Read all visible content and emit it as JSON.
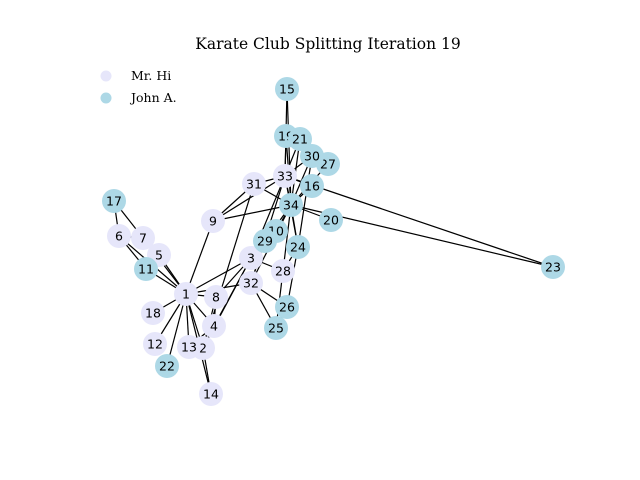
{
  "title": "Karate Club Splitting Iteration 19",
  "legend": [
    {
      "label": "Mr. Hi",
      "color": "#e6e6fa"
    },
    {
      "label": "John A.",
      "color": "#add8e6"
    }
  ],
  "colors": {
    "mr_hi": "#e6e6fa",
    "john_a": "#add8e6"
  },
  "nodes": [
    {
      "id": "1",
      "group": "mr_hi"
    },
    {
      "id": "2",
      "group": "mr_hi"
    },
    {
      "id": "3",
      "group": "mr_hi"
    },
    {
      "id": "4",
      "group": "mr_hi"
    },
    {
      "id": "5",
      "group": "mr_hi"
    },
    {
      "id": "6",
      "group": "mr_hi"
    },
    {
      "id": "7",
      "group": "mr_hi"
    },
    {
      "id": "8",
      "group": "mr_hi"
    },
    {
      "id": "9",
      "group": "mr_hi"
    },
    {
      "id": "10",
      "group": "john_a"
    },
    {
      "id": "11",
      "group": "john_a"
    },
    {
      "id": "12",
      "group": "mr_hi"
    },
    {
      "id": "13",
      "group": "mr_hi"
    },
    {
      "id": "14",
      "group": "mr_hi"
    },
    {
      "id": "15",
      "group": "john_a"
    },
    {
      "id": "16",
      "group": "john_a"
    },
    {
      "id": "17",
      "group": "john_a"
    },
    {
      "id": "18",
      "group": "mr_hi"
    },
    {
      "id": "19",
      "group": "john_a"
    },
    {
      "id": "20",
      "group": "john_a"
    },
    {
      "id": "21",
      "group": "john_a"
    },
    {
      "id": "22",
      "group": "john_a"
    },
    {
      "id": "23",
      "group": "john_a"
    },
    {
      "id": "24",
      "group": "john_a"
    },
    {
      "id": "25",
      "group": "john_a"
    },
    {
      "id": "26",
      "group": "john_a"
    },
    {
      "id": "27",
      "group": "john_a"
    },
    {
      "id": "28",
      "group": "mr_hi"
    },
    {
      "id": "29",
      "group": "john_a"
    },
    {
      "id": "30",
      "group": "john_a"
    },
    {
      "id": "31",
      "group": "mr_hi"
    },
    {
      "id": "32",
      "group": "mr_hi"
    },
    {
      "id": "33",
      "group": "mr_hi"
    },
    {
      "id": "34",
      "group": "john_a"
    }
  ],
  "edges": [
    [
      "1",
      "2"
    ],
    [
      "1",
      "3"
    ],
    [
      "1",
      "4"
    ],
    [
      "1",
      "5"
    ],
    [
      "1",
      "6"
    ],
    [
      "1",
      "7"
    ],
    [
      "1",
      "8"
    ],
    [
      "1",
      "9"
    ],
    [
      "1",
      "11"
    ],
    [
      "1",
      "12"
    ],
    [
      "1",
      "13"
    ],
    [
      "1",
      "14"
    ],
    [
      "1",
      "18"
    ],
    [
      "1",
      "22"
    ],
    [
      "1",
      "32"
    ],
    [
      "2",
      "3"
    ],
    [
      "2",
      "4"
    ],
    [
      "2",
      "8"
    ],
    [
      "2",
      "14"
    ],
    [
      "2",
      "31"
    ],
    [
      "3",
      "4"
    ],
    [
      "3",
      "8"
    ],
    [
      "3",
      "10"
    ],
    [
      "3",
      "28"
    ],
    [
      "3",
      "29"
    ],
    [
      "3",
      "33"
    ],
    [
      "4",
      "8"
    ],
    [
      "4",
      "13"
    ],
    [
      "5",
      "7"
    ],
    [
      "5",
      "11"
    ],
    [
      "6",
      "7"
    ],
    [
      "6",
      "11"
    ],
    [
      "6",
      "17"
    ],
    [
      "7",
      "17"
    ],
    [
      "9",
      "31"
    ],
    [
      "9",
      "33"
    ],
    [
      "9",
      "34"
    ],
    [
      "10",
      "34"
    ],
    [
      "15",
      "33"
    ],
    [
      "15",
      "34"
    ],
    [
      "16",
      "33"
    ],
    [
      "16",
      "34"
    ],
    [
      "19",
      "33"
    ],
    [
      "19",
      "34"
    ],
    [
      "20",
      "34"
    ],
    [
      "21",
      "33"
    ],
    [
      "21",
      "34"
    ],
    [
      "23",
      "33"
    ],
    [
      "23",
      "34"
    ],
    [
      "24",
      "26"
    ],
    [
      "24",
      "28"
    ],
    [
      "24",
      "30"
    ],
    [
      "24",
      "33"
    ],
    [
      "24",
      "34"
    ],
    [
      "25",
      "26"
    ],
    [
      "25",
      "28"
    ],
    [
      "25",
      "32"
    ],
    [
      "26",
      "32"
    ],
    [
      "27",
      "30"
    ],
    [
      "27",
      "34"
    ],
    [
      "28",
      "34"
    ],
    [
      "29",
      "32"
    ],
    [
      "29",
      "34"
    ],
    [
      "30",
      "33"
    ],
    [
      "30",
      "34"
    ],
    [
      "31",
      "33"
    ],
    [
      "31",
      "34"
    ],
    [
      "32",
      "33"
    ],
    [
      "32",
      "34"
    ],
    [
      "33",
      "34"
    ]
  ]
}
